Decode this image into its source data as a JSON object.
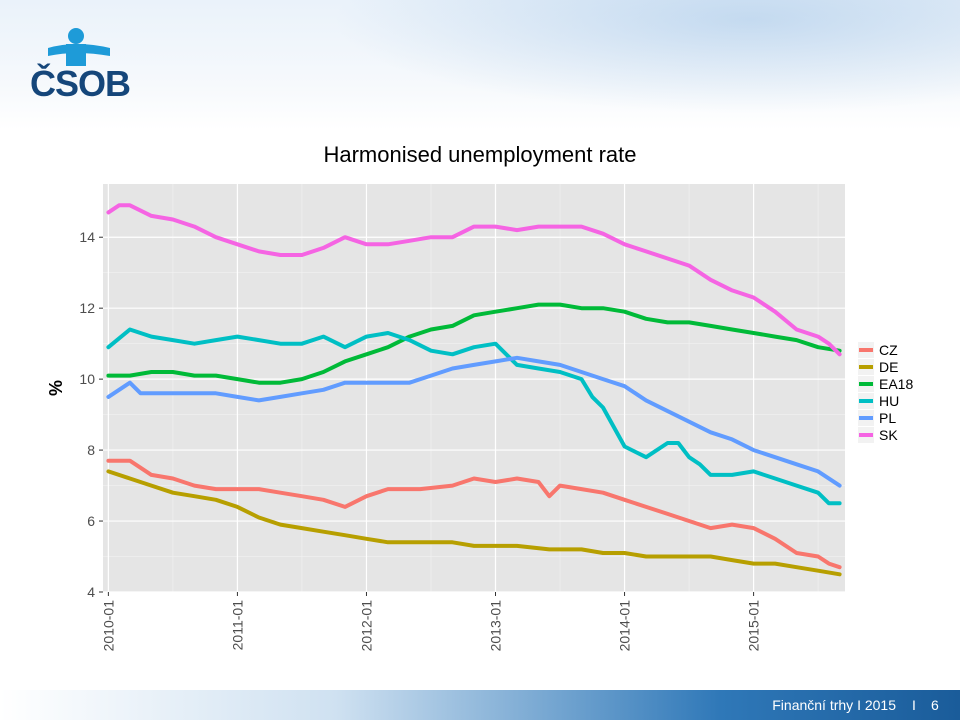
{
  "header": {
    "logo_text": "ČSOB",
    "brand_colors": {
      "dark": "#15467a",
      "light": "#1e9bd8"
    }
  },
  "footer": {
    "text": "Finanční trhy  I  2015",
    "separator": "I",
    "page_number": "6"
  },
  "chart_data": {
    "type": "line",
    "title": "Harmonised unemployment rate",
    "xlabel": "",
    "ylabel": "%",
    "x_start": "2010-01",
    "x_end": "2015-09",
    "xticks": [
      "2010-01",
      "2011-01",
      "2012-01",
      "2013-01",
      "2014-01",
      "2015-01"
    ],
    "ylim": [
      4,
      15.5
    ],
    "yticks": [
      4,
      6,
      8,
      10,
      12,
      14
    ],
    "grid": true,
    "legend_position": "right",
    "series": [
      {
        "name": "CZ",
        "color": "#F8766D",
        "points": [
          [
            "2010-01",
            7.7
          ],
          [
            "2010-03",
            7.7
          ],
          [
            "2010-05",
            7.3
          ],
          [
            "2010-07",
            7.2
          ],
          [
            "2010-09",
            7.0
          ],
          [
            "2010-11",
            6.9
          ],
          [
            "2011-01",
            6.9
          ],
          [
            "2011-03",
            6.9
          ],
          [
            "2011-05",
            6.8
          ],
          [
            "2011-07",
            6.7
          ],
          [
            "2011-09",
            6.6
          ],
          [
            "2011-11",
            6.4
          ],
          [
            "2012-01",
            6.7
          ],
          [
            "2012-03",
            6.9
          ],
          [
            "2012-06",
            6.9
          ],
          [
            "2012-09",
            7.0
          ],
          [
            "2012-11",
            7.2
          ],
          [
            "2013-01",
            7.1
          ],
          [
            "2013-03",
            7.2
          ],
          [
            "2013-05",
            7.1
          ],
          [
            "2013-06",
            6.7
          ],
          [
            "2013-07",
            7.0
          ],
          [
            "2013-09",
            6.9
          ],
          [
            "2013-11",
            6.8
          ],
          [
            "2014-01",
            6.6
          ],
          [
            "2014-03",
            6.4
          ],
          [
            "2014-05",
            6.2
          ],
          [
            "2014-07",
            6.0
          ],
          [
            "2014-09",
            5.8
          ],
          [
            "2014-11",
            5.9
          ],
          [
            "2015-01",
            5.8
          ],
          [
            "2015-03",
            5.5
          ],
          [
            "2015-05",
            5.1
          ],
          [
            "2015-07",
            5.0
          ],
          [
            "2015-08",
            4.8
          ],
          [
            "2015-09",
            4.7
          ]
        ]
      },
      {
        "name": "DE",
        "color": "#B79F00",
        "points": [
          [
            "2010-01",
            7.4
          ],
          [
            "2010-03",
            7.2
          ],
          [
            "2010-05",
            7.0
          ],
          [
            "2010-07",
            6.8
          ],
          [
            "2010-09",
            6.7
          ],
          [
            "2010-11",
            6.6
          ],
          [
            "2011-01",
            6.4
          ],
          [
            "2011-03",
            6.1
          ],
          [
            "2011-05",
            5.9
          ],
          [
            "2011-07",
            5.8
          ],
          [
            "2011-09",
            5.7
          ],
          [
            "2011-11",
            5.6
          ],
          [
            "2012-01",
            5.5
          ],
          [
            "2012-03",
            5.4
          ],
          [
            "2012-06",
            5.4
          ],
          [
            "2012-09",
            5.4
          ],
          [
            "2012-11",
            5.3
          ],
          [
            "2013-01",
            5.3
          ],
          [
            "2013-03",
            5.3
          ],
          [
            "2013-06",
            5.2
          ],
          [
            "2013-09",
            5.2
          ],
          [
            "2013-11",
            5.1
          ],
          [
            "2014-01",
            5.1
          ],
          [
            "2014-03",
            5.0
          ],
          [
            "2014-06",
            5.0
          ],
          [
            "2014-09",
            5.0
          ],
          [
            "2014-11",
            4.9
          ],
          [
            "2015-01",
            4.8
          ],
          [
            "2015-03",
            4.8
          ],
          [
            "2015-05",
            4.7
          ],
          [
            "2015-07",
            4.6
          ],
          [
            "2015-09",
            4.5
          ]
        ]
      },
      {
        "name": "EA18",
        "color": "#00BA38",
        "points": [
          [
            "2010-01",
            10.1
          ],
          [
            "2010-03",
            10.1
          ],
          [
            "2010-05",
            10.2
          ],
          [
            "2010-07",
            10.2
          ],
          [
            "2010-09",
            10.1
          ],
          [
            "2010-11",
            10.1
          ],
          [
            "2011-01",
            10.0
          ],
          [
            "2011-03",
            9.9
          ],
          [
            "2011-05",
            9.9
          ],
          [
            "2011-07",
            10.0
          ],
          [
            "2011-09",
            10.2
          ],
          [
            "2011-11",
            10.5
          ],
          [
            "2012-01",
            10.7
          ],
          [
            "2012-03",
            10.9
          ],
          [
            "2012-05",
            11.2
          ],
          [
            "2012-07",
            11.4
          ],
          [
            "2012-09",
            11.5
          ],
          [
            "2012-11",
            11.8
          ],
          [
            "2013-01",
            11.9
          ],
          [
            "2013-03",
            12.0
          ],
          [
            "2013-05",
            12.1
          ],
          [
            "2013-07",
            12.1
          ],
          [
            "2013-09",
            12.0
          ],
          [
            "2013-11",
            12.0
          ],
          [
            "2014-01",
            11.9
          ],
          [
            "2014-03",
            11.7
          ],
          [
            "2014-05",
            11.6
          ],
          [
            "2014-07",
            11.6
          ],
          [
            "2014-09",
            11.5
          ],
          [
            "2014-11",
            11.4
          ],
          [
            "2015-01",
            11.3
          ],
          [
            "2015-03",
            11.2
          ],
          [
            "2015-05",
            11.1
          ],
          [
            "2015-07",
            10.9
          ],
          [
            "2015-09",
            10.8
          ]
        ]
      },
      {
        "name": "HU",
        "color": "#00BFC4",
        "points": [
          [
            "2010-01",
            10.9
          ],
          [
            "2010-03",
            11.4
          ],
          [
            "2010-05",
            11.2
          ],
          [
            "2010-07",
            11.1
          ],
          [
            "2010-09",
            11.0
          ],
          [
            "2010-11",
            11.1
          ],
          [
            "2011-01",
            11.2
          ],
          [
            "2011-03",
            11.1
          ],
          [
            "2011-05",
            11.0
          ],
          [
            "2011-07",
            11.0
          ],
          [
            "2011-09",
            11.2
          ],
          [
            "2011-11",
            10.9
          ],
          [
            "2012-01",
            11.2
          ],
          [
            "2012-03",
            11.3
          ],
          [
            "2012-05",
            11.1
          ],
          [
            "2012-07",
            10.8
          ],
          [
            "2012-09",
            10.7
          ],
          [
            "2012-11",
            10.9
          ],
          [
            "2013-01",
            11.0
          ],
          [
            "2013-03",
            10.4
          ],
          [
            "2013-05",
            10.3
          ],
          [
            "2013-07",
            10.2
          ],
          [
            "2013-09",
            10.0
          ],
          [
            "2013-10",
            9.5
          ],
          [
            "2013-11",
            9.2
          ],
          [
            "2014-01",
            8.1
          ],
          [
            "2014-03",
            7.8
          ],
          [
            "2014-05",
            8.2
          ],
          [
            "2014-06",
            8.2
          ],
          [
            "2014-07",
            7.8
          ],
          [
            "2014-08",
            7.6
          ],
          [
            "2014-09",
            7.3
          ],
          [
            "2014-11",
            7.3
          ],
          [
            "2015-01",
            7.4
          ],
          [
            "2015-03",
            7.2
          ],
          [
            "2015-05",
            7.0
          ],
          [
            "2015-07",
            6.8
          ],
          [
            "2015-08",
            6.5
          ],
          [
            "2015-09",
            6.5
          ]
        ]
      },
      {
        "name": "PL",
        "color": "#619CFF",
        "points": [
          [
            "2010-01",
            9.5
          ],
          [
            "2010-03",
            9.9
          ],
          [
            "2010-04",
            9.6
          ],
          [
            "2010-07",
            9.6
          ],
          [
            "2010-11",
            9.6
          ],
          [
            "2011-01",
            9.5
          ],
          [
            "2011-03",
            9.4
          ],
          [
            "2011-05",
            9.5
          ],
          [
            "2011-07",
            9.6
          ],
          [
            "2011-09",
            9.7
          ],
          [
            "2011-11",
            9.9
          ],
          [
            "2012-01",
            9.9
          ],
          [
            "2012-03",
            9.9
          ],
          [
            "2012-05",
            9.9
          ],
          [
            "2012-07",
            10.1
          ],
          [
            "2012-09",
            10.3
          ],
          [
            "2012-11",
            10.4
          ],
          [
            "2013-01",
            10.5
          ],
          [
            "2013-03",
            10.6
          ],
          [
            "2013-05",
            10.5
          ],
          [
            "2013-07",
            10.4
          ],
          [
            "2013-09",
            10.2
          ],
          [
            "2013-11",
            10.0
          ],
          [
            "2014-01",
            9.8
          ],
          [
            "2014-03",
            9.4
          ],
          [
            "2014-05",
            9.1
          ],
          [
            "2014-07",
            8.8
          ],
          [
            "2014-09",
            8.5
          ],
          [
            "2014-11",
            8.3
          ],
          [
            "2015-01",
            8.0
          ],
          [
            "2015-03",
            7.8
          ],
          [
            "2015-05",
            7.6
          ],
          [
            "2015-07",
            7.4
          ],
          [
            "2015-09",
            7.0
          ]
        ]
      },
      {
        "name": "SK",
        "color": "#F564E3",
        "points": [
          [
            "2010-01",
            14.7
          ],
          [
            "2010-02",
            14.9
          ],
          [
            "2010-03",
            14.9
          ],
          [
            "2010-05",
            14.6
          ],
          [
            "2010-07",
            14.5
          ],
          [
            "2010-09",
            14.3
          ],
          [
            "2010-11",
            14.0
          ],
          [
            "2011-01",
            13.8
          ],
          [
            "2011-03",
            13.6
          ],
          [
            "2011-05",
            13.5
          ],
          [
            "2011-07",
            13.5
          ],
          [
            "2011-09",
            13.7
          ],
          [
            "2011-11",
            14.0
          ],
          [
            "2012-01",
            13.8
          ],
          [
            "2012-03",
            13.8
          ],
          [
            "2012-05",
            13.9
          ],
          [
            "2012-07",
            14.0
          ],
          [
            "2012-09",
            14.0
          ],
          [
            "2012-11",
            14.3
          ],
          [
            "2013-01",
            14.3
          ],
          [
            "2013-03",
            14.2
          ],
          [
            "2013-05",
            14.3
          ],
          [
            "2013-07",
            14.3
          ],
          [
            "2013-09",
            14.3
          ],
          [
            "2013-11",
            14.1
          ],
          [
            "2014-01",
            13.8
          ],
          [
            "2014-03",
            13.6
          ],
          [
            "2014-05",
            13.4
          ],
          [
            "2014-07",
            13.2
          ],
          [
            "2014-09",
            12.8
          ],
          [
            "2014-11",
            12.5
          ],
          [
            "2015-01",
            12.3
          ],
          [
            "2015-03",
            11.9
          ],
          [
            "2015-05",
            11.4
          ],
          [
            "2015-07",
            11.2
          ],
          [
            "2015-08",
            11.0
          ],
          [
            "2015-09",
            10.7
          ]
        ]
      }
    ]
  }
}
